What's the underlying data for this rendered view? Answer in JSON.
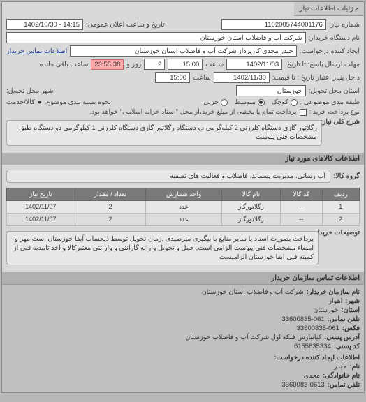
{
  "header": {
    "tab": "جزئیات اطلاعات نیاز"
  },
  "top": {
    "need_no_label": "شماره نیاز:",
    "need_no": "1102005744001176",
    "announce_label": "تاریخ و ساعت اعلان عمومی:",
    "announce": "14:15 - 1402/10/30",
    "buyer_label": "نام دستگاه خریدار:",
    "buyer": "شرکت آب و فاضلاب استان خوزستان",
    "requester_label": "ایجاد کننده درخواست:",
    "requester": "حیدر مجدی کارپرداز شرکت آب و فاضلاب استان خوزستان",
    "contact_link": "اطلاعات تماس خریدار",
    "deadline_send_label": "مهلت ارسال پاسخ: تا تاریخ:",
    "deadline_send_date": "1402/11/03",
    "time_label": "ساعت",
    "deadline_send_time": "15:00",
    "days": "2",
    "days_label": "روز و",
    "countdown": "23:55:38",
    "remain_label": "ساعت باقی مانده",
    "valid_label": "داخل ینیاز اعتبار تاریخ : تا قیمت:",
    "valid_date": "1402/11/30",
    "valid_time": "15:00",
    "province_label": "استان محل تحویل:",
    "province": "خوزستان",
    "city_label": "شهر محل تحویل:",
    "itemkind_label": "نحوه بسته بندی موضوع:",
    "itemkind_items": "کالا/خدمت",
    "classify_item": "●",
    "budget_label": "طبقه بندی موضوعی :",
    "radios": {
      "small": "کوچک",
      "medium": "متوسط",
      "partial": "جزیی"
    },
    "paytype_label": "نوع پرداخت خرید :",
    "pay_checkbox_label": "پرداخت تمام یا بخشی از مبلغ خرید،از محل \"اسناد خزانه اسلامی\" خواهد بود.",
    "desc_label": "شرح کلی نیاز:",
    "desc": "رگلاتور گازی دستگاه کلرزنی 2 کیلوگرمی دو دستگاه رگلاتور گازی دستگاه کلرزنی 1 کیلوگرمی دو دستگاه طبق مشخصات فنی پیوست"
  },
  "items": {
    "header": "اطلاعات کالاهای مورد نیاز",
    "cat_label": "گروه کالا:",
    "cat": "آب رسانی، مدیریت پسماند، فاضلاب و فعالیت های تصفیه",
    "cols": [
      "ردیف",
      "کد کالا",
      "نام کالا",
      "واحد شمارش",
      "تعداد / مقدار",
      "تاریخ نیاز"
    ],
    "rows": [
      [
        "1",
        "--",
        "رگلاتورگاز",
        "عدد",
        "2",
        "1402/11/07"
      ],
      [
        "2",
        "--",
        "رگلاتورگاز",
        "عدد",
        "2",
        "1402/11/07"
      ]
    ],
    "notes_label": "توضیحات خریدار:",
    "notes": "پرداخت بصورت اسناد یا سایر منابع با پیگیری میرصیدی ,زمان تحویل توسط ذیحساب آبفا خوزستان است,مهر و امضاء مشخصات فنی پیوست الزامی است, حمل و تحویل وارائه گارانتی و وارانتی معتبرکالا و اخذ تاییدیه فنی از کمیته فنی ابفا خوزستان الزامیست"
  },
  "org": {
    "header": "اطلاعات تماس سازمان خریدار",
    "org_name_label": "نام سازمان خریدار:",
    "org_name": "شرکت آب و فاضلاب استان خوزستان",
    "city_label": "شهر:",
    "city": "اهواز",
    "province_label": "استان:",
    "province": "خوزستان",
    "phone_label": "تلفن تماس:",
    "phone": "33600835-061",
    "fax_label": "فکس:",
    "fax": "33600835-061",
    "address_label": "آدرس پستی:",
    "address": "کیانبارس فلکه اول شرکت آب و فاضلاب خوزستان",
    "postal_label": "کد پستی:",
    "postal": "6155835334",
    "creator_header": "اطلاعات ایجاد کننده درخواست:",
    "name_label": "نام:",
    "name": "حیدر",
    "family_label": "نام خانوادگی:",
    "family": "مجدی",
    "cphone_label": "تلفن تماس:",
    "cphone": "3360083-0613"
  }
}
